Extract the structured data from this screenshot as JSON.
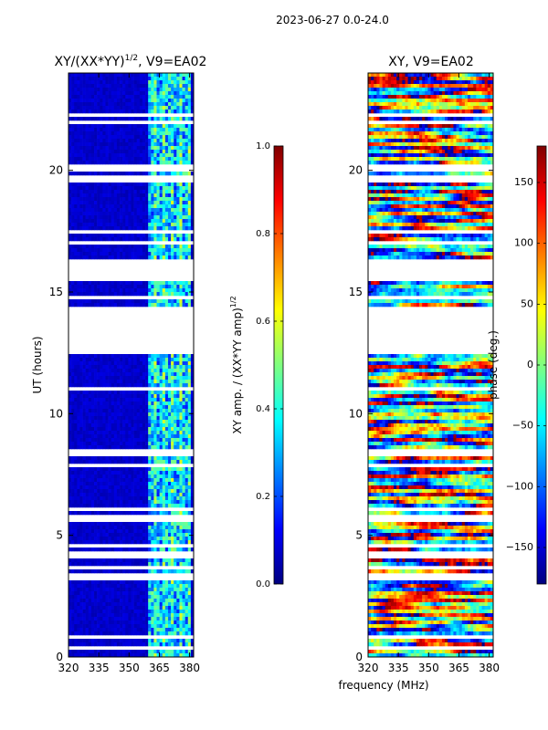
{
  "suptitle": "2023-06-27 0.0-24.0",
  "colors": {
    "jet": [
      "#00007f",
      "#0000ff",
      "#007fff",
      "#00ffff",
      "#7fff7f",
      "#ffff00",
      "#ff7f00",
      "#ff0000",
      "#7f0000"
    ],
    "axis": "#000000",
    "background": "#ffffff"
  },
  "chart_data": [
    {
      "type": "heatmap",
      "title": "XY/(XX*YY)^1/2, V9=EA02",
      "title_main": "XY/(XX*YY)",
      "title_exp": "1/2",
      "title_tail": ", V9=EA02",
      "xlabel": "",
      "ylabel": "UT (hours)",
      "xlim": [
        320,
        382
      ],
      "ylim": [
        0,
        24
      ],
      "xticks": [
        320,
        335,
        350,
        365,
        380
      ],
      "yticks": [
        0,
        5,
        10,
        15,
        20
      ],
      "rfi_band_mhz": [
        360,
        380
      ],
      "colorbar": {
        "label": "XY amp. / (XX*YY amp)^1/2",
        "label_main": "XY amp. / (XX*YY amp)",
        "label_exp": "1/2",
        "range": [
          0.0,
          1.0
        ],
        "ticks": [
          0.0,
          0.2,
          0.4,
          0.6,
          0.8,
          1.0
        ],
        "tick_labels": [
          "0.0",
          "0.2",
          "0.4",
          "0.6",
          "0.8",
          "1.0"
        ]
      }
    },
    {
      "type": "heatmap",
      "title": "XY, V9=EA02",
      "xlabel": "frequency (MHz)",
      "ylabel": "",
      "xlim": [
        320,
        382
      ],
      "ylim": [
        0,
        24
      ],
      "xticks": [
        320,
        335,
        350,
        365,
        380
      ],
      "yticks": [
        0,
        5,
        10,
        15,
        20
      ],
      "colorbar": {
        "label": "phase (deg.)",
        "range": [
          -180,
          180
        ],
        "ticks": [
          -150,
          -100,
          -50,
          0,
          50,
          100,
          150
        ],
        "tick_labels": [
          "−150",
          "−100",
          "−50",
          "0",
          "50",
          "100",
          "150"
        ]
      }
    }
  ],
  "data_gaps_hours": [
    [
      0.3,
      0.4
    ],
    [
      0.8,
      0.85
    ],
    [
      1.2,
      1.25
    ],
    [
      1.6,
      1.65
    ],
    [
      1.9,
      2.0
    ],
    [
      3.1,
      3.4
    ],
    [
      3.6,
      3.7
    ],
    [
      4.0,
      4.3
    ],
    [
      4.5,
      4.6
    ],
    [
      5.6,
      5.8
    ],
    [
      6.0,
      6.1
    ],
    [
      7.8,
      7.9
    ],
    [
      8.3,
      8.5
    ],
    [
      9.7,
      9.8
    ],
    [
      11.0,
      11.1
    ],
    [
      12.5,
      14.4
    ],
    [
      14.7,
      14.8
    ],
    [
      15.4,
      16.4
    ],
    [
      16.9,
      17.1
    ],
    [
      17.4,
      17.5
    ],
    [
      19.5,
      19.8
    ],
    [
      20.0,
      20.2
    ],
    [
      21.9,
      22.0
    ],
    [
      22.2,
      22.4
    ],
    [
      22.9,
      23.0
    ],
    [
      23.5,
      23.6
    ]
  ]
}
